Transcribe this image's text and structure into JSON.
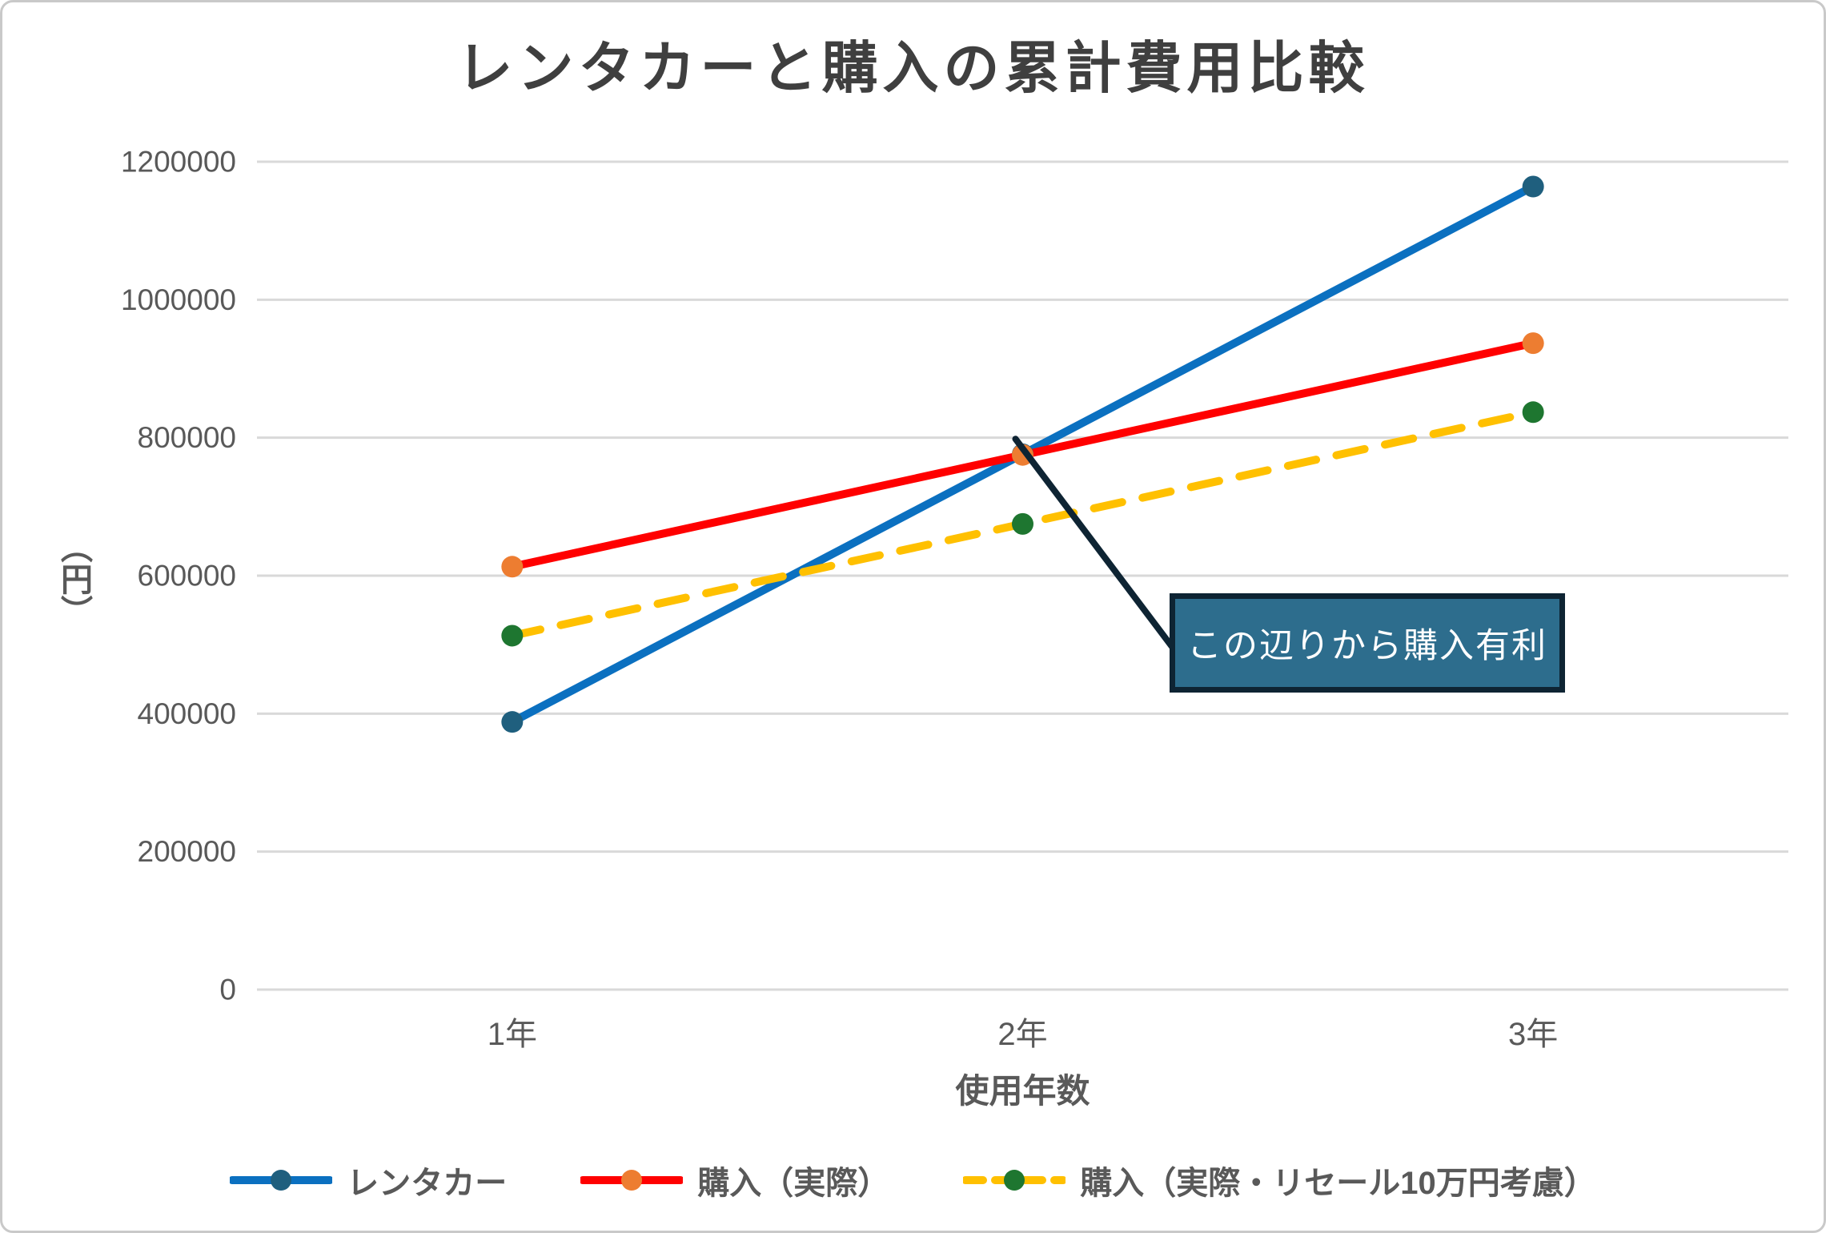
{
  "title": "レンタカーと購入の累計費用比較",
  "chart_data": {
    "type": "line",
    "categories": [
      "1年",
      "2年",
      "3年"
    ],
    "series": [
      {
        "name": "レンタカー",
        "values": [
          388000,
          776000,
          1164000
        ],
        "line_color": "#0b70c0",
        "marker_color": "#1f5f7e",
        "dashed": false
      },
      {
        "name": "購入（実際）",
        "values": [
          613000,
          775000,
          937000
        ],
        "line_color": "#ff0000",
        "marker_color": "#ed7d31",
        "dashed": false
      },
      {
        "name": "購入（実際・リセール10万円考慮）",
        "values": [
          513000,
          675000,
          837000
        ],
        "line_color": "#ffc000",
        "marker_color": "#1e7630",
        "dashed": true
      }
    ],
    "xlabel": "使用年数",
    "ylabel": "（円）",
    "ylim": [
      0,
      1200000
    ],
    "y_ticks": [
      0,
      200000,
      400000,
      600000,
      800000,
      1000000,
      1200000
    ],
    "grid": "horizontal-only",
    "legend_position": "bottom",
    "annotation": {
      "text": "この辺りから購入有利"
    }
  },
  "colors": {
    "grid": "#d9d9d9",
    "tick_text": "#595959",
    "title_text": "#3f3f3f",
    "annotation_bg": "#2d6d8d",
    "annotation_border": "#0e2433",
    "annotation_text": "#ffffff",
    "callout_line": "#0e2433"
  }
}
